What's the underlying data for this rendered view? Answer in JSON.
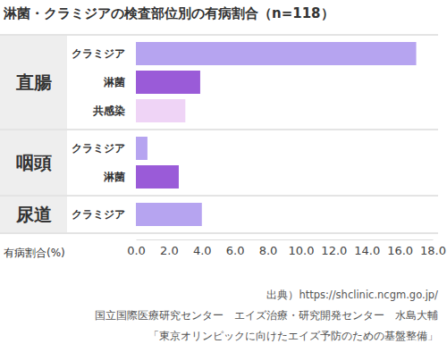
{
  "chart_data": {
    "type": "bar",
    "orientation": "horizontal",
    "title": "淋菌・クラミジアの検査部位別の有病割合（n=118）",
    "xlabel": "有病割合(%)",
    "groups": [
      {
        "label": "直腸",
        "categories": [
          "クラミジア",
          "淋菌",
          "共感染"
        ],
        "values": [
          17.0,
          3.9,
          3.0
        ],
        "colors": [
          "#b6a4f0",
          "#9a5bd8",
          "#efd4f6"
        ]
      },
      {
        "label": "咽頭",
        "categories": [
          "クラミジア",
          "淋菌"
        ],
        "values": [
          0.7,
          2.6
        ],
        "colors": [
          "#b6a4f0",
          "#9a5bd8"
        ]
      },
      {
        "label": "尿道",
        "categories": [
          "クラミジア"
        ],
        "values": [
          4.0
        ],
        "colors": [
          "#b6a4f0"
        ]
      }
    ],
    "xlim": [
      0,
      18
    ],
    "xticks": [
      {
        "value": 0,
        "label": "0.0"
      },
      {
        "value": 2,
        "label": "2.0"
      },
      {
        "value": 4,
        "label": "4.0"
      },
      {
        "value": 6,
        "label": "6.0"
      },
      {
        "value": 8,
        "label": "8.0"
      },
      {
        "value": 10,
        "label": "10.0"
      },
      {
        "value": 12,
        "label": "12.0"
      },
      {
        "value": 14,
        "label": "14.0"
      },
      {
        "value": 16,
        "label": "16.0"
      },
      {
        "value": 18,
        "label": "18.0"
      }
    ],
    "annotations": [
      "出典）https://shclinic.ncgm.go.jp/",
      "国立国際医療研究センター　エイズ治療・研究開発センター　水島大輔",
      "「東京オリンピックに向けたエイズ予防のための基盤整備」"
    ]
  }
}
